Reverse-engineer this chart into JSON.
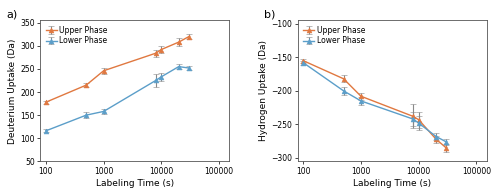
{
  "panel_a": {
    "title": "a)",
    "xlabel": "Labeling Time (s)",
    "ylabel": "Deuterium Uptake (Da)",
    "ylim": [
      50,
      355
    ],
    "yticks": [
      50,
      100,
      150,
      200,
      250,
      300,
      350
    ],
    "upper_phase": {
      "x": [
        100,
        500,
        1000,
        8000,
        10000,
        20000,
        30000
      ],
      "y": [
        178,
        215,
        246,
        284,
        292,
        308,
        320
      ],
      "yerr": [
        3,
        4,
        6,
        8,
        7,
        8,
        6
      ],
      "color": "#E07840",
      "label": "Upper Phase"
    },
    "lower_phase": {
      "x": [
        100,
        500,
        1000,
        8000,
        10000,
        20000,
        30000
      ],
      "y": [
        116,
        150,
        158,
        225,
        233,
        255,
        252
      ],
      "yerr": [
        3,
        6,
        5,
        14,
        9,
        5,
        5
      ],
      "color": "#5B9EC9",
      "label": "Lower Phase"
    }
  },
  "panel_b": {
    "title": "b)",
    "xlabel": "Labeling Time (s)",
    "ylabel": "Hydrogen Uptake (Da)",
    "ylim": [
      -305,
      -95
    ],
    "yticks": [
      -300,
      -250,
      -200,
      -150,
      -100
    ],
    "upper_phase": {
      "x": [
        100,
        500,
        1000,
        8000,
        10000,
        20000,
        30000
      ],
      "y": [
        -155,
        -182,
        -208,
        -238,
        -243,
        -272,
        -285
      ],
      "yerr": [
        3,
        5,
        5,
        18,
        12,
        5,
        6
      ],
      "color": "#E07840",
      "label": "Upper Phase"
    },
    "lower_phase": {
      "x": [
        100,
        500,
        1000,
        8000,
        10000,
        20000,
        30000
      ],
      "y": [
        -158,
        -200,
        -215,
        -242,
        -248,
        -268,
        -276
      ],
      "yerr": [
        3,
        6,
        6,
        10,
        10,
        5,
        5
      ],
      "color": "#5B9EC9",
      "label": "Lower Phase"
    }
  },
  "background_color": "#ffffff",
  "plot_bg_color": "#ffffff",
  "marker": "^",
  "markersize": 3.5,
  "linewidth": 1.0,
  "capsize": 2,
  "elinewidth": 0.8,
  "legend_fontsize": 5.5,
  "label_fontsize": 6.5,
  "tick_fontsize": 5.5,
  "spine_color": "#555555",
  "spine_linewidth": 0.6
}
